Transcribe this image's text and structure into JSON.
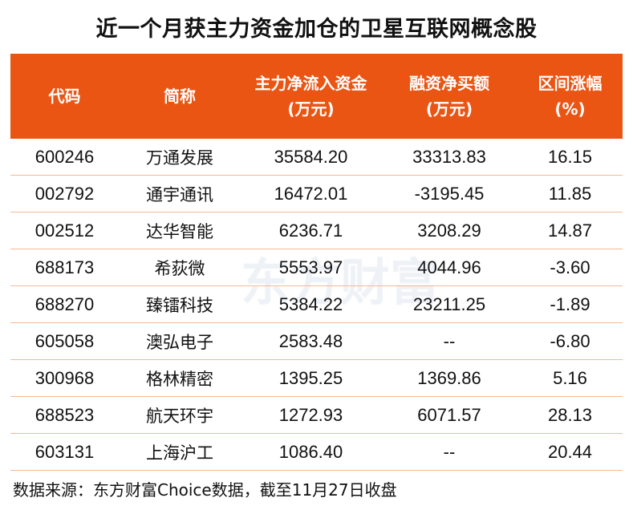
{
  "title": "近一个月获主力资金加仓的卫星互联网概念股",
  "watermark": "东方财富",
  "chart_data": {
    "type": "table",
    "columns": [
      "代码",
      "简称",
      "主力净流入资金\n(万元)",
      "融资净买额\n(万元)",
      "区间涨幅\n(%)"
    ],
    "rows": [
      [
        "600246",
        "万通发展",
        "35584.20",
        "33313.83",
        "16.15"
      ],
      [
        "002792",
        "通宇通讯",
        "16472.01",
        "-3195.45",
        "11.85"
      ],
      [
        "002512",
        "达华智能",
        "6236.71",
        "3208.29",
        "14.87"
      ],
      [
        "688173",
        "希荻微",
        "5553.97",
        "4044.96",
        "-3.60"
      ],
      [
        "688270",
        "臻镭科技",
        "5384.22",
        "23211.25",
        "-1.89"
      ],
      [
        "605058",
        "澳弘电子",
        "2583.48",
        "--",
        "-6.80"
      ],
      [
        "300968",
        "格林精密",
        "1395.25",
        "1369.86",
        "5.16"
      ],
      [
        "688523",
        "航天环宇",
        "1272.93",
        "6071.57",
        "28.13"
      ],
      [
        "603131",
        "上海沪工",
        "1086.40",
        "--",
        "20.44"
      ]
    ]
  },
  "source": "数据来源：东方财富Choice数据，截至11月27日收盘",
  "colors": {
    "header": "#EA5514",
    "row_divider": "#F5B896"
  }
}
